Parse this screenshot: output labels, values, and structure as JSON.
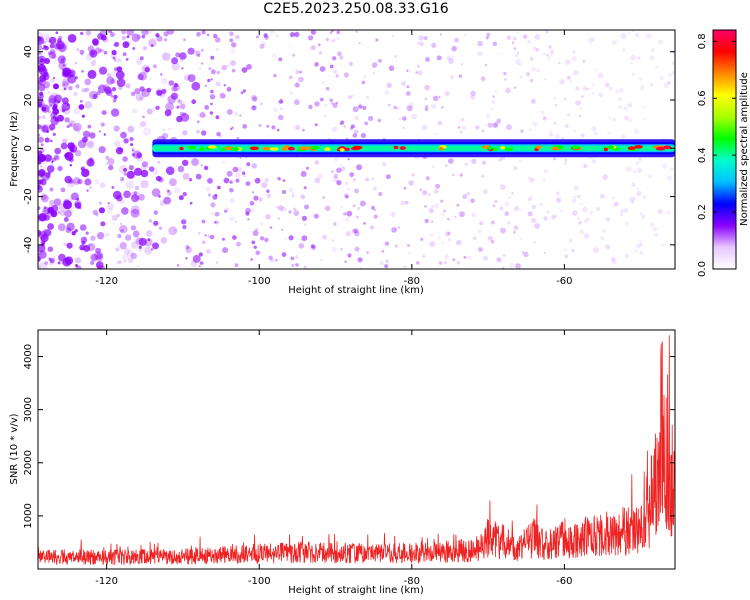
{
  "title": "C2E5.2023.250.08.33.G16",
  "colors": {
    "scatter_purple": "#8a00ff",
    "snr_line": "#ee2222",
    "frame": "#000000"
  },
  "chart_data": [
    {
      "type": "heatmap",
      "xlabel": "Height of straight line (km)",
      "ylabel": "Frequency (Hz)",
      "xlim": [
        -129,
        -45.5
      ],
      "ylim": [
        -50,
        49
      ],
      "xticks": [
        -120,
        -100,
        -80,
        -60
      ],
      "yticks": [
        -40,
        -20,
        0,
        20,
        40
      ],
      "xtick_labels": [
        "-120",
        "-100",
        "-80",
        "-60"
      ],
      "ytick_labels": [
        "-40",
        "-20",
        "0",
        "20",
        "40"
      ],
      "band_frequency_hz": 0,
      "band_start_km": -114,
      "colorbar": {
        "label": "Normalized spectral amplitude",
        "range": [
          0,
          0.84
        ],
        "ticks": [
          0.0,
          0.2,
          0.4,
          0.6,
          0.8
        ],
        "tick_labels": [
          "0.0",
          "0.2",
          "0.4",
          "0.6",
          "0.8"
        ],
        "colormap": [
          "#ffffff",
          "#e8c8ff",
          "#8a00ff",
          "#0000ff",
          "#00bfff",
          "#00ffcc",
          "#00ff00",
          "#aaff00",
          "#ffff00",
          "#ff8800",
          "#ff0000",
          "#ff0066"
        ]
      }
    },
    {
      "type": "line",
      "xlabel": "Height of straight line (km)",
      "ylabel": "SNR (10 * v/v)",
      "xlim": [
        -129,
        -45.5
      ],
      "ylim": [
        0,
        4500
      ],
      "xticks": [
        -120,
        -100,
        -80,
        -60
      ],
      "yticks": [
        1000,
        2000,
        3000,
        4000
      ],
      "xtick_labels": [
        "-120",
        "-100",
        "-80",
        "-60"
      ],
      "ytick_labels": [
        "1000",
        "2000",
        "3000",
        "4000"
      ],
      "series": [
        {
          "x": [
            -129,
            -125,
            -120,
            -115,
            -110,
            -105,
            -100,
            -95,
            -90,
            -85,
            -80,
            -75,
            -72,
            -70,
            -68,
            -66,
            -64,
            -62,
            -60,
            -58,
            -56,
            -54,
            -52,
            -50,
            -49,
            -48,
            -47,
            -46,
            -45.5
          ],
          "y": [
            300,
            320,
            300,
            310,
            320,
            360,
            400,
            430,
            420,
            400,
            420,
            450,
            500,
            800,
            700,
            520,
            800,
            600,
            820,
            780,
            900,
            900,
            1000,
            1000,
            1400,
            2500,
            2900,
            2400,
            2200
          ]
        }
      ]
    }
  ]
}
